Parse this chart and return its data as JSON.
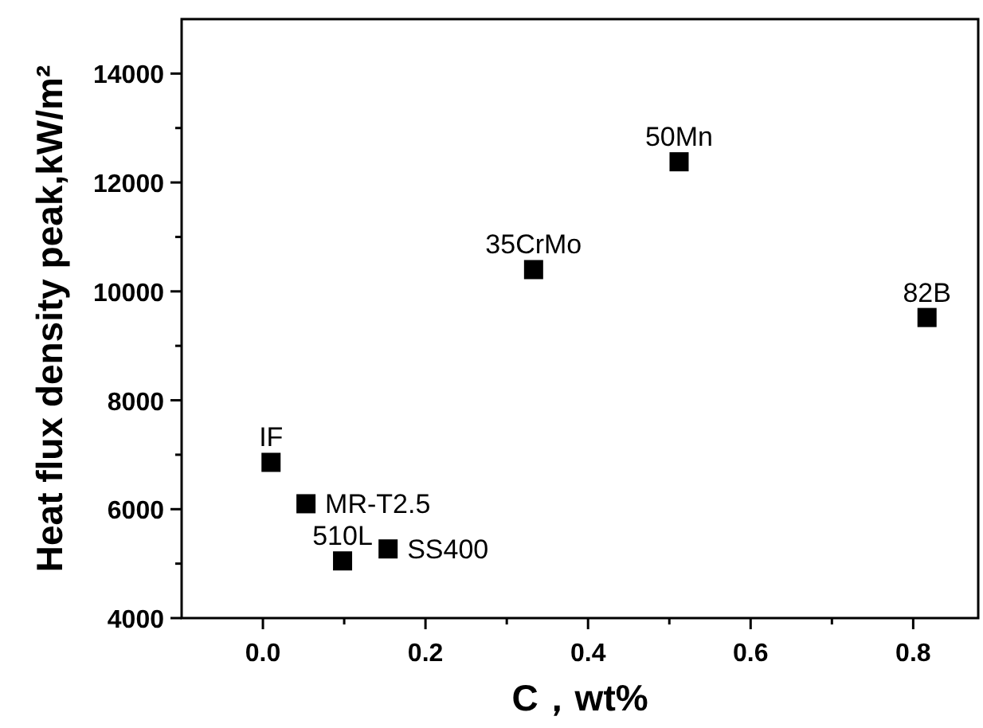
{
  "chart_data": {
    "type": "scatter",
    "xlabel": "C，wt%",
    "ylabel": "Heat flux density peak,kW/m²",
    "x": [
      0.01,
      0.053,
      0.098,
      0.154,
      0.333,
      0.512,
      0.817
    ],
    "series": [
      {
        "color": "#000000",
        "values": [
          6860,
          6100,
          5050,
          5270,
          10400,
          12380,
          9520
        ]
      }
    ],
    "marker": "square",
    "grid": false,
    "xlim": [
      -0.1,
      0.88
    ],
    "ylim": [
      4000,
      15000
    ],
    "xticks": [
      {
        "value": 0,
        "label": "0.0"
      },
      {
        "value": 0.1,
        "label": null
      },
      {
        "value": 0.2,
        "label": "0.2"
      },
      {
        "value": 0.3,
        "label": null
      },
      {
        "value": 0.4,
        "label": "0.4"
      },
      {
        "value": 0.5,
        "label": null
      },
      {
        "value": 0.6,
        "label": "0.6"
      },
      {
        "value": 0.7,
        "label": null
      },
      {
        "value": 0.8,
        "label": "0.8"
      }
    ],
    "yticks": [
      4000,
      {
        "value": 5000,
        "label": null
      },
      6000,
      {
        "value": 7000,
        "label": null
      },
      8000,
      {
        "value": 9000,
        "label": null
      },
      10000,
      {
        "value": 11000,
        "label": null
      },
      12000,
      {
        "value": 13000,
        "label": null
      },
      14000
    ],
    "annotations": [
      {
        "text": "IF",
        "x": 0.01,
        "y": 6860
      },
      {
        "text": "MR-T2.5",
        "x": 0.053,
        "y": 6100
      },
      {
        "text": "510L",
        "x": 0.098,
        "y": 5050
      },
      {
        "text": "SS400",
        "x": 0.154,
        "y": 5270
      },
      {
        "text": "35CrMo",
        "x": 0.333,
        "y": 10400
      },
      {
        "text": "50Mn",
        "x": 0.512,
        "y": 12380
      },
      {
        "text": "82B",
        "x": 0.817,
        "y": 9520
      }
    ]
  }
}
